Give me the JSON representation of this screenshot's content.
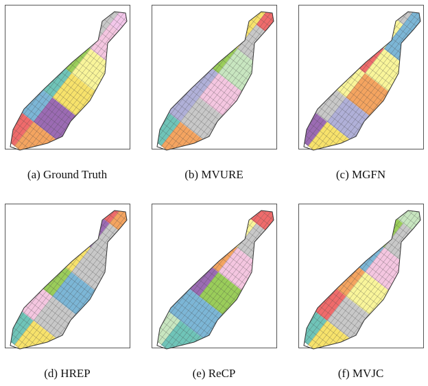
{
  "panels": [
    {
      "caption": "(a) Ground Truth"
    },
    {
      "caption": "(b) MVURE"
    },
    {
      "caption": "(c) MGFN"
    },
    {
      "caption": "(d) HREP"
    },
    {
      "caption": "(e) ReCP"
    },
    {
      "caption": "(f) MVJC"
    }
  ]
}
